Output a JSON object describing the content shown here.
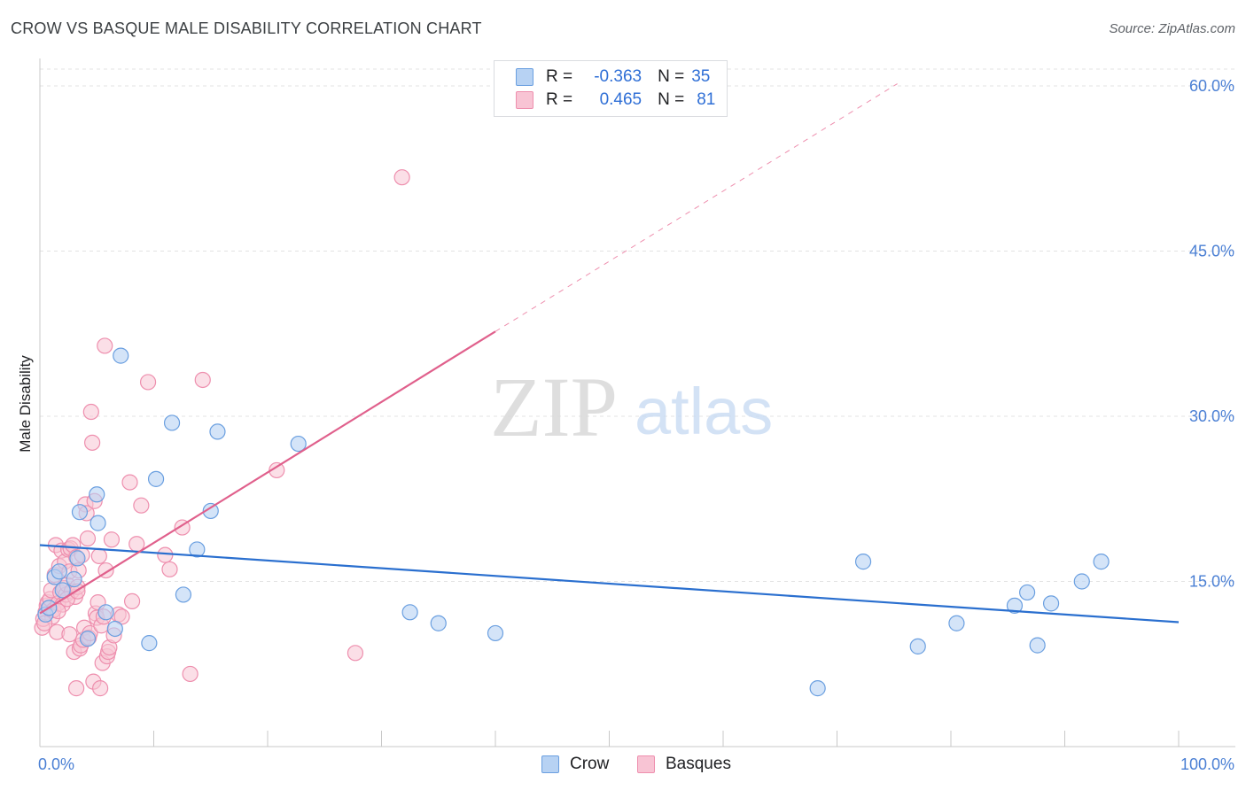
{
  "header": {
    "title": "CROW VS BASQUE MALE DISABILITY CORRELATION CHART",
    "source": "Source: ZipAtlas.com"
  },
  "watermark": {
    "zip": "ZIP",
    "atlas": "atlas"
  },
  "legend": {
    "rows": [
      {
        "r_label": "R =",
        "r_value": "-0.363",
        "n_label": "N =",
        "n_value": "35"
      },
      {
        "r_label": "R =",
        "r_value": "0.465",
        "n_label": "N =",
        "n_value": "81"
      }
    ]
  },
  "bottom_legend": {
    "crow": "Crow",
    "basques": "Basques"
  },
  "colors": {
    "crow_fill": "#b7d2f3",
    "crow_stroke": "#6a9fe0",
    "crow_line": "#2a6fcf",
    "basque_fill": "#f8c4d4",
    "basque_stroke": "#ee8fae",
    "basque_line": "#e0608c",
    "grid": "#e3e3e3",
    "tick_text": "#4a7fd4"
  },
  "chart_data": {
    "type": "scatter",
    "title": "CROW VS BASQUE MALE DISABILITY CORRELATION CHART",
    "xlabel": "",
    "ylabel": "Male Disability",
    "xlim": [
      0,
      100
    ],
    "ylim": [
      0,
      60
    ],
    "x_tick_labels": [
      "0.0%",
      "100.0%"
    ],
    "y_ticks": [
      {
        "value": 15,
        "label": "15.0%"
      },
      {
        "value": 30,
        "label": "30.0%"
      },
      {
        "value": 45,
        "label": "45.0%"
      },
      {
        "value": 60,
        "label": "60.0%"
      }
    ],
    "grid": true,
    "series": [
      {
        "name": "Crow",
        "r": -0.363,
        "n": 35,
        "trend": {
          "x0": 0,
          "y0": 18.3,
          "x1": 100,
          "y1": 11.3
        },
        "points": [
          [
            1.3,
            15.4
          ],
          [
            1.7,
            15.9
          ],
          [
            3.0,
            15.2
          ],
          [
            3.3,
            17.1
          ],
          [
            3.5,
            21.3
          ],
          [
            5.0,
            22.9
          ],
          [
            5.1,
            20.3
          ],
          [
            5.8,
            12.2
          ],
          [
            6.6,
            10.7
          ],
          [
            7.1,
            35.5
          ],
          [
            9.6,
            9.4
          ],
          [
            10.2,
            24.3
          ],
          [
            11.6,
            29.4
          ],
          [
            12.6,
            13.8
          ],
          [
            13.8,
            17.9
          ],
          [
            15.0,
            21.4
          ],
          [
            15.6,
            28.6
          ],
          [
            22.7,
            27.5
          ],
          [
            32.5,
            12.2
          ],
          [
            35.0,
            11.2
          ],
          [
            40.0,
            10.3
          ],
          [
            68.3,
            5.3
          ],
          [
            72.3,
            16.8
          ],
          [
            77.1,
            9.1
          ],
          [
            80.5,
            11.2
          ],
          [
            85.6,
            12.8
          ],
          [
            86.7,
            14.0
          ],
          [
            87.6,
            9.2
          ],
          [
            88.8,
            13.0
          ],
          [
            91.5,
            15.0
          ],
          [
            93.2,
            16.8
          ],
          [
            0.5,
            12.0
          ],
          [
            0.8,
            12.6
          ],
          [
            4.2,
            9.8
          ],
          [
            2.0,
            14.2
          ]
        ]
      },
      {
        "name": "Basques",
        "r": 0.465,
        "n": 81,
        "trend": {
          "x0": 0,
          "y0": 12.1,
          "x1": 40,
          "y1": 37.7
        },
        "trend_extension": {
          "x0": 40,
          "y0": 37.7,
          "x1": 75.3,
          "y1": 60.2
        },
        "points": [
          [
            0.2,
            10.8
          ],
          [
            0.3,
            11.6
          ],
          [
            0.5,
            12.2
          ],
          [
            0.6,
            12.8
          ],
          [
            0.7,
            13.1
          ],
          [
            0.9,
            13.4
          ],
          [
            1.0,
            14.2
          ],
          [
            1.1,
            11.8
          ],
          [
            1.2,
            12.4
          ],
          [
            1.3,
            15.6
          ],
          [
            1.4,
            18.3
          ],
          [
            1.5,
            10.4
          ],
          [
            1.6,
            13.0
          ],
          [
            1.7,
            16.4
          ],
          [
            1.8,
            14.0
          ],
          [
            1.9,
            17.8
          ],
          [
            2.0,
            12.9
          ],
          [
            2.1,
            14.4
          ],
          [
            2.2,
            16.8
          ],
          [
            2.3,
            13.8
          ],
          [
            2.4,
            14.7
          ],
          [
            2.5,
            17.9
          ],
          [
            2.6,
            15.9
          ],
          [
            2.7,
            18.0
          ],
          [
            2.8,
            14.1
          ],
          [
            2.9,
            18.3
          ],
          [
            3.0,
            8.6
          ],
          [
            3.1,
            13.6
          ],
          [
            3.2,
            17.2
          ],
          [
            3.3,
            14.5
          ],
          [
            3.4,
            16.0
          ],
          [
            3.5,
            8.9
          ],
          [
            3.6,
            9.2
          ],
          [
            3.7,
            17.4
          ],
          [
            3.8,
            9.7
          ],
          [
            3.9,
            10.8
          ],
          [
            4.0,
            22.0
          ],
          [
            4.1,
            21.2
          ],
          [
            4.2,
            18.9
          ],
          [
            4.3,
            9.9
          ],
          [
            4.4,
            10.3
          ],
          [
            4.5,
            30.4
          ],
          [
            4.6,
            27.6
          ],
          [
            4.7,
            5.9
          ],
          [
            4.8,
            22.3
          ],
          [
            4.9,
            12.1
          ],
          [
            5.0,
            11.7
          ],
          [
            5.1,
            13.1
          ],
          [
            5.2,
            17.3
          ],
          [
            5.3,
            5.3
          ],
          [
            5.4,
            11.0
          ],
          [
            5.5,
            7.6
          ],
          [
            5.6,
            11.8
          ],
          [
            5.7,
            36.4
          ],
          [
            5.8,
            16.0
          ],
          [
            5.9,
            8.2
          ],
          [
            6.0,
            8.6
          ],
          [
            6.1,
            9.0
          ],
          [
            6.3,
            18.8
          ],
          [
            6.5,
            10.1
          ],
          [
            6.9,
            12.0
          ],
          [
            7.2,
            11.8
          ],
          [
            7.9,
            24.0
          ],
          [
            8.1,
            13.2
          ],
          [
            8.5,
            18.4
          ],
          [
            8.9,
            21.9
          ],
          [
            9.5,
            33.1
          ],
          [
            11.0,
            17.4
          ],
          [
            11.4,
            16.1
          ],
          [
            12.5,
            19.9
          ],
          [
            13.2,
            6.6
          ],
          [
            14.3,
            33.3
          ],
          [
            20.8,
            25.1
          ],
          [
            27.7,
            8.5
          ],
          [
            31.8,
            51.7
          ],
          [
            0.4,
            11.2
          ],
          [
            1.6,
            12.3
          ],
          [
            2.4,
            13.4
          ],
          [
            3.3,
            14.1
          ],
          [
            3.2,
            5.3
          ],
          [
            2.6,
            10.2
          ]
        ]
      }
    ]
  }
}
